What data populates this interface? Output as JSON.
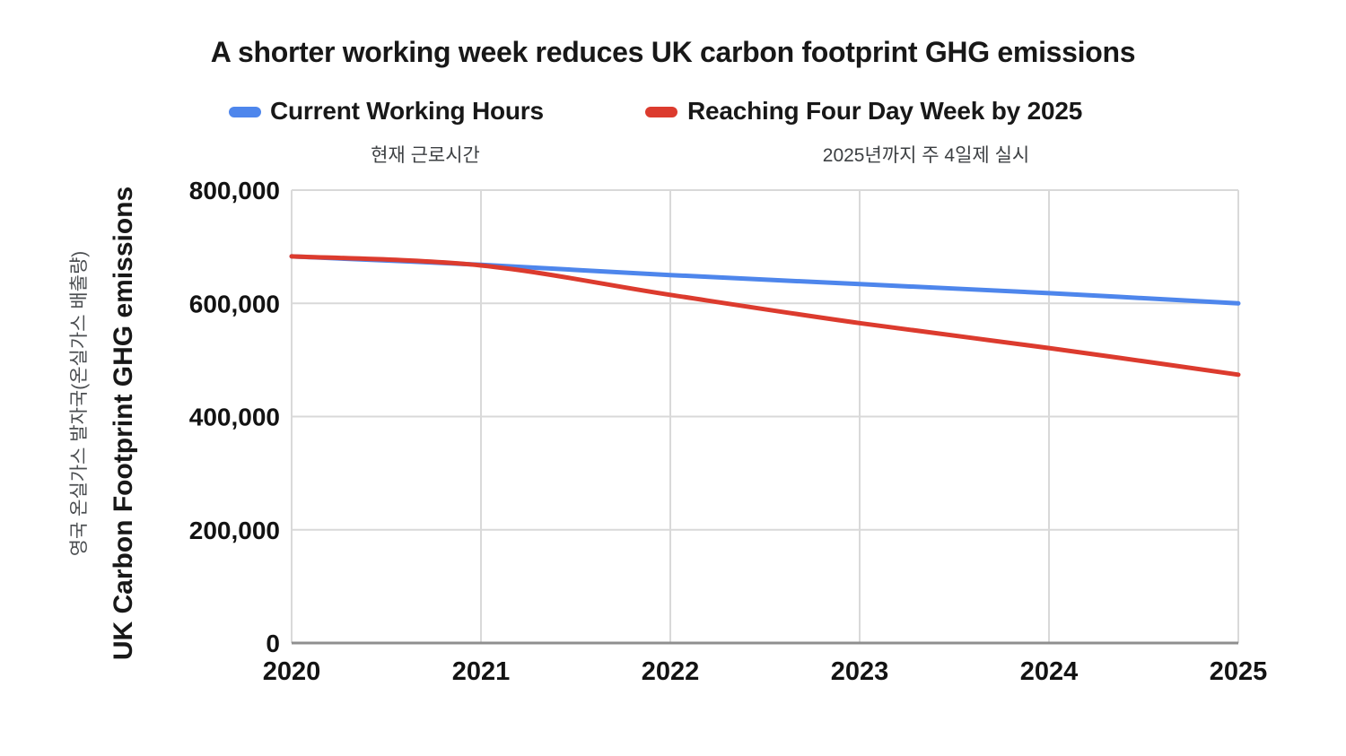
{
  "chart_data": {
    "type": "line",
    "title": "A shorter working week reduces UK carbon footprint GHG emissions",
    "ylabel": "UK Carbon Footprint GHG emissions",
    "ylabel_ko": "영국 온실가스 발자국(온실가스 배출량)",
    "x": [
      "2020",
      "2021",
      "2022",
      "2023",
      "2024",
      "2025"
    ],
    "series": [
      {
        "name": "Current Working Hours",
        "name_ko": "현재 근로시간",
        "color": "#4e86ec",
        "values": [
          683000,
          668000,
          650000,
          634000,
          618000,
          600000
        ]
      },
      {
        "name": "Reaching Four Day Week by 2025",
        "name_ko": "2025년까지 주 4일제 실시",
        "color": "#dc3b2e",
        "values": [
          683000,
          667000,
          615000,
          565000,
          521000,
          474000
        ]
      }
    ],
    "ylim": [
      0,
      800000
    ],
    "ytick_step": 200000,
    "ytick_labels": [
      "0",
      "200,000",
      "400,000",
      "600,000",
      "800,000"
    ],
    "grid": true,
    "legend_position": "top",
    "line_style": "smooth"
  }
}
